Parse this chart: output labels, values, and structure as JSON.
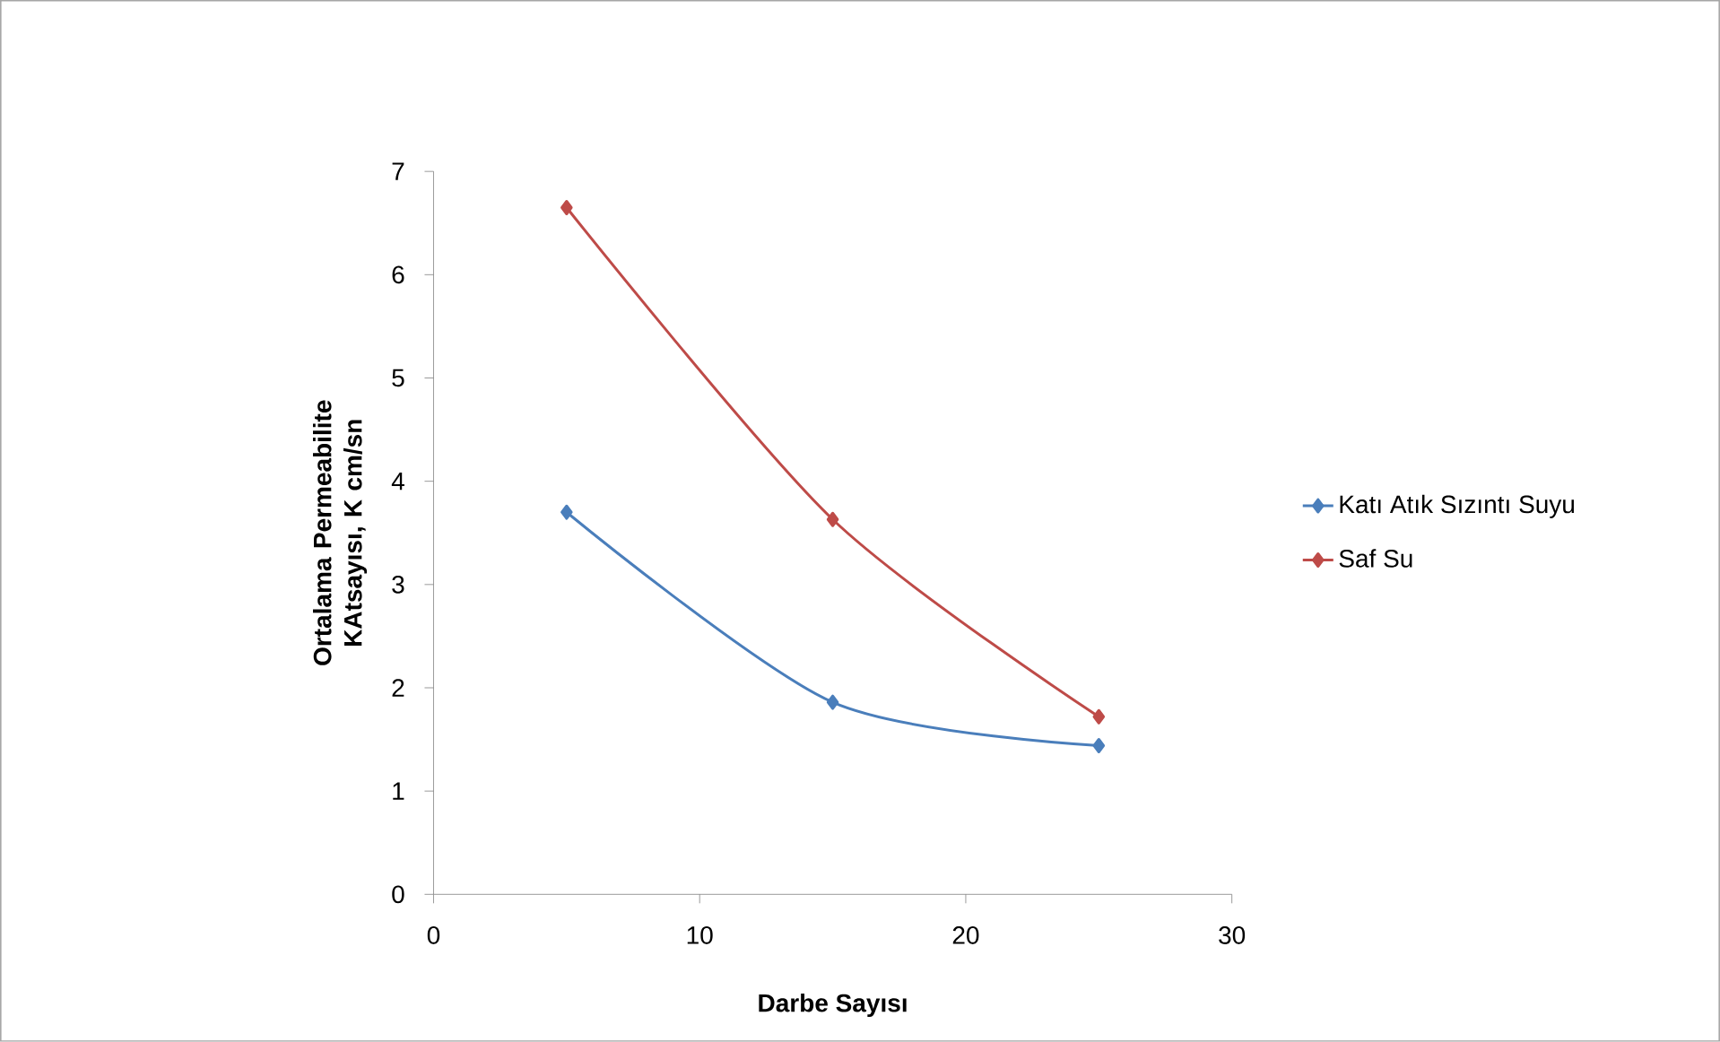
{
  "chart_data": {
    "type": "line",
    "xlabel": "Darbe Sayısı",
    "ylabel": "Ortalama Permeabilite KAtsayısı, K cm/sn",
    "x": [
      5,
      15,
      25
    ],
    "series": [
      {
        "name": "Katı Atık Sızıntı Suyu",
        "color": "#4a7ebb",
        "values": [
          3.7,
          1.86,
          1.44
        ]
      },
      {
        "name": "Saf Su",
        "color": "#be4b48",
        "values": [
          6.65,
          3.63,
          1.72
        ]
      }
    ],
    "xlim": [
      0,
      30
    ],
    "xticks": [
      0,
      10,
      20,
      30
    ],
    "ylim": [
      0,
      7
    ],
    "yticks": [
      0,
      1,
      2,
      3,
      4,
      5,
      6,
      7
    ],
    "grid": false,
    "legend": "right",
    "marker": "diamond",
    "line_style": "solid"
  }
}
